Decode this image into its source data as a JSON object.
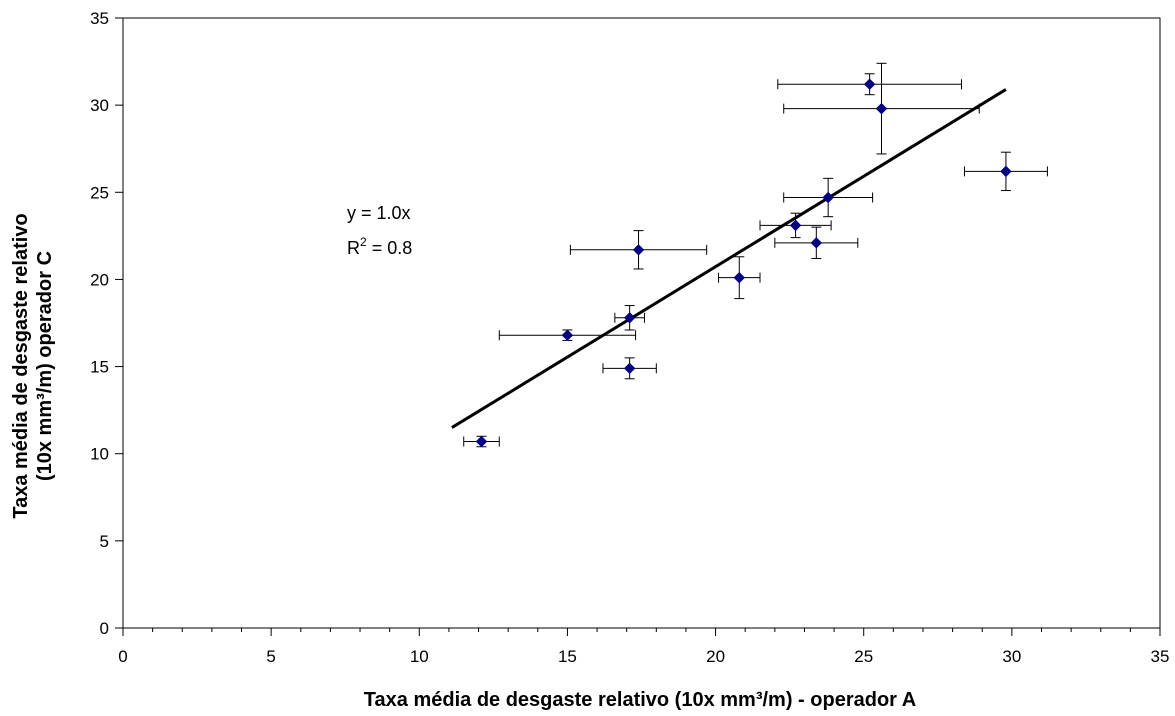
{
  "chart_data": {
    "type": "scatter",
    "xlabel": "Taxa média de desgaste relativo (10x mm³/m) - operador A",
    "ylabel_line1": "Taxa média de desgaste relativo",
    "ylabel_line2": "(10x mm³/m) operador C",
    "xlim": [
      0,
      35
    ],
    "ylim": [
      0,
      35
    ],
    "x_major_ticks": [
      0,
      5,
      10,
      15,
      20,
      25,
      30,
      35
    ],
    "x_minor_step": 1,
    "y_major_ticks": [
      0,
      5,
      10,
      15,
      20,
      25,
      30,
      35
    ],
    "tick_labels_x": [
      "0",
      "5",
      "10",
      "15",
      "20",
      "25",
      "30",
      "35"
    ],
    "tick_labels_y": [
      "0",
      "5",
      "10",
      "15",
      "20",
      "25",
      "30",
      "35"
    ],
    "grid": false,
    "legend": "none",
    "marker_color": "#000080",
    "points": [
      {
        "x": 12.1,
        "y": 10.7,
        "xerr": 0.6,
        "yerr": 0.3
      },
      {
        "x": 15.0,
        "y": 16.8,
        "xerr": 2.3,
        "yerr": 0.3
      },
      {
        "x": 17.1,
        "y": 17.8,
        "xerr": 0.5,
        "yerr": 0.7
      },
      {
        "x": 17.1,
        "y": 14.9,
        "xerr": 0.9,
        "yerr": 0.6
      },
      {
        "x": 17.4,
        "y": 21.7,
        "xerr": 2.3,
        "yerr": 1.1
      },
      {
        "x": 20.8,
        "y": 20.1,
        "xerr": 0.7,
        "yerr": 1.2
      },
      {
        "x": 22.7,
        "y": 23.1,
        "xerr": 1.2,
        "yerr": 0.7
      },
      {
        "x": 23.4,
        "y": 22.1,
        "xerr": 1.4,
        "yerr": 0.9
      },
      {
        "x": 23.8,
        "y": 24.7,
        "xerr": 1.5,
        "yerr": 1.1
      },
      {
        "x": 25.2,
        "y": 31.2,
        "xerr": 3.1,
        "yerr": 0.6
      },
      {
        "x": 25.6,
        "y": 29.8,
        "xerr": 3.3,
        "yerr": 2.6
      },
      {
        "x": 29.8,
        "y": 26.2,
        "xerr": 1.4,
        "yerr": 1.1
      }
    ],
    "trendline": {
      "x": [
        11.1,
        29.8
      ],
      "y": [
        11.5,
        30.9
      ]
    },
    "annotation_eq": "y = 1.0x",
    "annotation_r2_base": "R",
    "annotation_r2_sup": "2",
    "annotation_r2_rest": " = 0.8"
  }
}
